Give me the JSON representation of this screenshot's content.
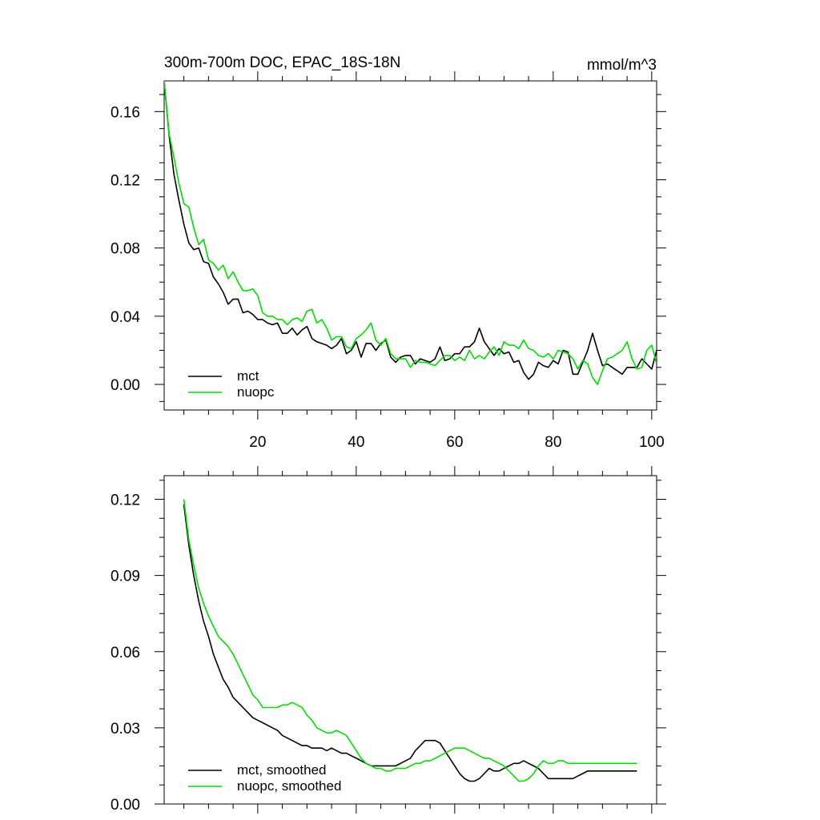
{
  "chart_data": [
    {
      "type": "line",
      "title": "300m-700m DOC, EPAC_18S-18N",
      "units": "mmol/m^3",
      "xlim": [
        1,
        101
      ],
      "ylim": [
        -0.015,
        0.178
      ],
      "xticks": [
        20,
        40,
        60,
        80,
        100
      ],
      "xtick_labels": [
        "20",
        "40",
        "60",
        "80",
        "100"
      ],
      "yticks": [
        0.0,
        0.04,
        0.08,
        0.12,
        0.16
      ],
      "ytick_labels": [
        "0.00",
        "0.04",
        "0.08",
        "0.12",
        "0.16"
      ],
      "legend_position": "bottom-left",
      "x": [
        1,
        2,
        3,
        4,
        5,
        6,
        7,
        8,
        9,
        10,
        11,
        12,
        13,
        14,
        15,
        16,
        17,
        18,
        19,
        20,
        21,
        22,
        23,
        24,
        25,
        26,
        27,
        28,
        29,
        30,
        31,
        32,
        33,
        34,
        35,
        36,
        37,
        38,
        39,
        40,
        41,
        42,
        43,
        44,
        45,
        46,
        47,
        48,
        49,
        50,
        51,
        52,
        53,
        54,
        55,
        56,
        57,
        58,
        59,
        60,
        61,
        62,
        63,
        64,
        65,
        66,
        67,
        68,
        69,
        70,
        71,
        72,
        73,
        74,
        75,
        76,
        77,
        78,
        79,
        80,
        81,
        82,
        83,
        84,
        85,
        86,
        87,
        88,
        89,
        90,
        91,
        92,
        93,
        94,
        95,
        96,
        97,
        98,
        99,
        100,
        101
      ],
      "series": [
        {
          "name": "mct",
          "color": "#000000",
          "values": [
            0.178,
            0.146,
            0.123,
            0.108,
            0.094,
            0.083,
            0.079,
            0.08,
            0.072,
            0.071,
            0.063,
            0.059,
            0.054,
            0.047,
            0.05,
            0.05,
            0.042,
            0.043,
            0.041,
            0.038,
            0.038,
            0.036,
            0.035,
            0.036,
            0.03,
            0.03,
            0.033,
            0.029,
            0.032,
            0.034,
            0.027,
            0.025,
            0.024,
            0.023,
            0.021,
            0.023,
            0.027,
            0.018,
            0.02,
            0.025,
            0.016,
            0.024,
            0.024,
            0.02,
            0.024,
            0.026,
            0.016,
            0.013,
            0.016,
            0.017,
            0.017,
            0.012,
            0.015,
            0.014,
            0.013,
            0.015,
            0.022,
            0.014,
            0.015,
            0.018,
            0.018,
            0.022,
            0.022,
            0.025,
            0.033,
            0.025,
            0.021,
            0.017,
            0.021,
            0.018,
            0.019,
            0.013,
            0.014,
            0.007,
            0.003,
            0.006,
            0.013,
            0.011,
            0.01,
            0.014,
            0.012,
            0.02,
            0.019,
            0.006,
            0.006,
            0.013,
            0.02,
            0.03,
            0.02,
            0.011,
            0.012,
            0.01,
            0.008,
            0.006,
            0.01,
            0.01,
            0.01,
            0.015,
            0.012,
            0.009,
            0.02
          ],
          "legend_label": "mct"
        },
        {
          "name": "nuopc",
          "color": "#00dd00",
          "values": [
            0.178,
            0.147,
            0.133,
            0.118,
            0.106,
            0.104,
            0.092,
            0.082,
            0.085,
            0.073,
            0.071,
            0.067,
            0.07,
            0.062,
            0.066,
            0.06,
            0.055,
            0.055,
            0.056,
            0.052,
            0.042,
            0.04,
            0.04,
            0.038,
            0.038,
            0.035,
            0.038,
            0.039,
            0.037,
            0.043,
            0.044,
            0.036,
            0.038,
            0.033,
            0.026,
            0.028,
            0.028,
            0.022,
            0.021,
            0.027,
            0.029,
            0.032,
            0.036,
            0.026,
            0.023,
            0.027,
            0.018,
            0.015,
            0.015,
            0.015,
            0.01,
            0.014,
            0.013,
            0.013,
            0.012,
            0.011,
            0.014,
            0.017,
            0.017,
            0.014,
            0.016,
            0.014,
            0.02,
            0.015,
            0.017,
            0.015,
            0.019,
            0.022,
            0.017,
            0.025,
            0.023,
            0.023,
            0.021,
            0.026,
            0.021,
            0.02,
            0.017,
            0.016,
            0.018,
            0.015,
            0.02,
            0.019,
            0.018,
            0.015,
            0.009,
            0.014,
            0.012,
            0.004,
            0.0,
            0.008,
            0.015,
            0.016,
            0.018,
            0.02,
            0.025,
            0.015,
            0.009,
            0.01,
            0.02,
            0.023,
            0.012
          ],
          "legend_label": "nuopc"
        }
      ]
    },
    {
      "type": "line",
      "xlim": [
        1,
        101
      ],
      "ylim": [
        0.0,
        0.12931
      ],
      "xticks": [
        20,
        40,
        60,
        80,
        100
      ],
      "xtick_labels": [
        "",
        "",
        "",
        "",
        ""
      ],
      "yticks": [
        0.0,
        0.03,
        0.06,
        0.09,
        0.12
      ],
      "ytick_labels": [
        "0.00",
        "0.03",
        "0.06",
        "0.09",
        "0.12"
      ],
      "legend_position": "bottom-left",
      "x": [
        5,
        6,
        7,
        8,
        9,
        10,
        11,
        12,
        13,
        14,
        15,
        16,
        17,
        18,
        19,
        20,
        21,
        22,
        23,
        24,
        25,
        26,
        27,
        28,
        29,
        30,
        31,
        32,
        33,
        34,
        35,
        36,
        37,
        38,
        39,
        40,
        41,
        42,
        43,
        44,
        45,
        46,
        47,
        48,
        49,
        50,
        51,
        52,
        53,
        54,
        55,
        56,
        57,
        58,
        59,
        60,
        61,
        62,
        63,
        64,
        65,
        66,
        67,
        68,
        69,
        70,
        71,
        72,
        73,
        74,
        75,
        76,
        77,
        78,
        79,
        80,
        81,
        82,
        83,
        84,
        85,
        86,
        87,
        88,
        89,
        90,
        91,
        92,
        93,
        94,
        95,
        96,
        97
      ],
      "series": [
        {
          "name": "mct, smoothed",
          "color": "#000000",
          "values": [
            0.118,
            0.102,
            0.09,
            0.08,
            0.072,
            0.066,
            0.059,
            0.054,
            0.049,
            0.046,
            0.042,
            0.04,
            0.038,
            0.036,
            0.034,
            0.033,
            0.032,
            0.031,
            0.03,
            0.029,
            0.027,
            0.026,
            0.025,
            0.024,
            0.023,
            0.023,
            0.022,
            0.022,
            0.022,
            0.021,
            0.022,
            0.021,
            0.02,
            0.02,
            0.019,
            0.018,
            0.017,
            0.016,
            0.015,
            0.015,
            0.015,
            0.015,
            0.015,
            0.015,
            0.016,
            0.017,
            0.018,
            0.021,
            0.023,
            0.025,
            0.025,
            0.025,
            0.024,
            0.021,
            0.018,
            0.015,
            0.012,
            0.01,
            0.009,
            0.009,
            0.01,
            0.012,
            0.014,
            0.013,
            0.013,
            0.014,
            0.015,
            0.016,
            0.016,
            0.017,
            0.016,
            0.015,
            0.014,
            0.012,
            0.01,
            0.01,
            0.01,
            0.01,
            0.01,
            0.01,
            0.011,
            0.012,
            0.013,
            0.013,
            0.013,
            0.013,
            0.013,
            0.013,
            0.013,
            0.013,
            0.013,
            0.013,
            0.013
          ],
          "legend_label": "mct, smoothed"
        },
        {
          "name": "nuopc, smoothed",
          "color": "#00dd00",
          "values": [
            0.12,
            0.104,
            0.094,
            0.085,
            0.079,
            0.074,
            0.07,
            0.066,
            0.064,
            0.062,
            0.059,
            0.055,
            0.051,
            0.047,
            0.043,
            0.041,
            0.038,
            0.038,
            0.038,
            0.038,
            0.039,
            0.039,
            0.04,
            0.039,
            0.038,
            0.035,
            0.033,
            0.03,
            0.029,
            0.028,
            0.028,
            0.029,
            0.028,
            0.027,
            0.024,
            0.021,
            0.018,
            0.016,
            0.015,
            0.014,
            0.014,
            0.013,
            0.013,
            0.014,
            0.014,
            0.014,
            0.015,
            0.016,
            0.016,
            0.017,
            0.017,
            0.018,
            0.019,
            0.02,
            0.021,
            0.022,
            0.022,
            0.022,
            0.021,
            0.02,
            0.019,
            0.018,
            0.018,
            0.017,
            0.016,
            0.015,
            0.013,
            0.011,
            0.009,
            0.009,
            0.01,
            0.012,
            0.015,
            0.017,
            0.016,
            0.016,
            0.017,
            0.017,
            0.016,
            0.016,
            0.016,
            0.016,
            0.016,
            0.016,
            0.016,
            0.016,
            0.016,
            0.016,
            0.016,
            0.016,
            0.016,
            0.016,
            0.016
          ],
          "legend_label": "nuopc, smoothed"
        }
      ]
    }
  ]
}
